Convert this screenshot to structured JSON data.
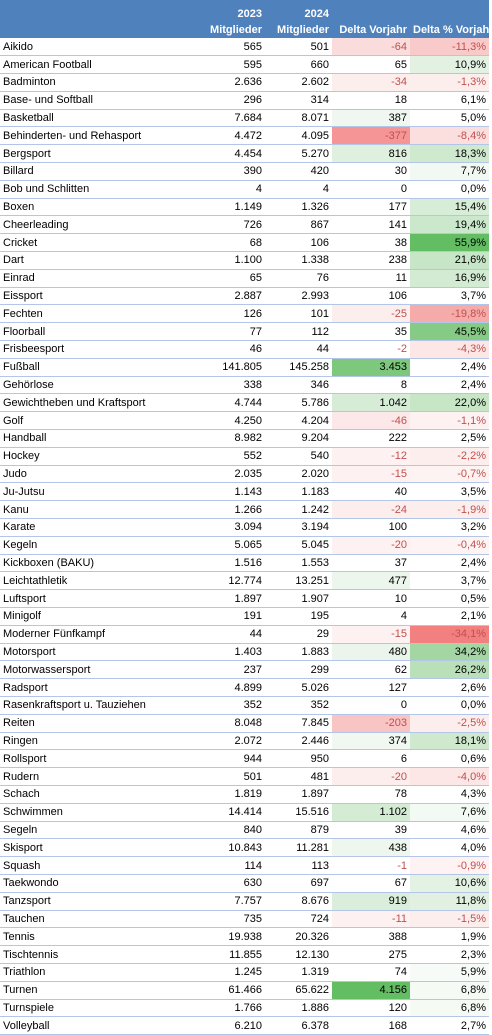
{
  "headers": {
    "name": "",
    "y2023_line1": "2023",
    "y2023_line2": "Mitglieder",
    "y2024_line1": "2024",
    "y2024_line2": "Mitglieder",
    "delta": "Delta Vorjahr",
    "delta_pct": "Delta % Vorjahr"
  },
  "colors": {
    "header_bg": "#4f81bd",
    "negative_text": "#c0504d",
    "positive_scale": [
      "#e4f1e4",
      "#cde9cd",
      "#a6d8a6",
      "#6cc06c"
    ],
    "negative_scale": [
      "#fce4e4",
      "#f9c8c8",
      "#f59595"
    ]
  },
  "rows": [
    {
      "name": "Aikido",
      "y2023": "565",
      "y2024": "501",
      "delta": "-64",
      "pct": "-11,3%",
      "dc": "#fadcdc",
      "pc": "#f9caca"
    },
    {
      "name": "American Football",
      "y2023": "595",
      "y2024": "660",
      "delta": "65",
      "pct": "10,9%",
      "dc": "",
      "pc": "#e3f1e3"
    },
    {
      "name": "Badminton",
      "y2023": "2.636",
      "y2024": "2.602",
      "delta": "-34",
      "pct": "-1,3%",
      "dc": "#fdeeee",
      "pc": "#fdeeee"
    },
    {
      "name": "Base- und Softball",
      "y2023": "296",
      "y2024": "314",
      "delta": "18",
      "pct": "6,1%",
      "dc": "",
      "pc": ""
    },
    {
      "name": "Basketball",
      "y2023": "7.684",
      "y2024": "8.071",
      "delta": "387",
      "pct": "5,0%",
      "dc": "#f0f7f0",
      "pc": ""
    },
    {
      "name": "Behinderten- und Rehasport",
      "y2023": "4.472",
      "y2024": "4.095",
      "delta": "-377",
      "pct": "-8,4%",
      "dc": "#f59595",
      "pc": "#fbdede"
    },
    {
      "name": "Bergsport",
      "y2023": "4.454",
      "y2024": "5.270",
      "delta": "816",
      "pct": "18,3%",
      "dc": "#dff0df",
      "pc": "#cfe9cf"
    },
    {
      "name": "Billard",
      "y2023": "390",
      "y2024": "420",
      "delta": "30",
      "pct": "7,7%",
      "dc": "",
      "pc": "#f2f8f2"
    },
    {
      "name": "Bob und Schlitten",
      "y2023": "4",
      "y2024": "4",
      "delta": "0",
      "pct": "0,0%",
      "dc": "",
      "pc": ""
    },
    {
      "name": "Boxen",
      "y2023": "1.149",
      "y2024": "1.326",
      "delta": "177",
      "pct": "15,4%",
      "dc": "",
      "pc": "#d7edd7"
    },
    {
      "name": "Cheerleading",
      "y2023": "726",
      "y2024": "867",
      "delta": "141",
      "pct": "19,4%",
      "dc": "",
      "pc": "#cce8cc"
    },
    {
      "name": "Cricket",
      "y2023": "68",
      "y2024": "106",
      "delta": "38",
      "pct": "55,9%",
      "dc": "",
      "pc": "#63be63"
    },
    {
      "name": "Dart",
      "y2023": "1.100",
      "y2024": "1.338",
      "delta": "238",
      "pct": "21,6%",
      "dc": "",
      "pc": "#c7e6c7"
    },
    {
      "name": "Einrad",
      "y2023": "65",
      "y2024": "76",
      "delta": "11",
      "pct": "16,9%",
      "dc": "",
      "pc": "#d3ebd3"
    },
    {
      "name": "Eissport",
      "y2023": "2.887",
      "y2024": "2.993",
      "delta": "106",
      "pct": "3,7%",
      "dc": "",
      "pc": ""
    },
    {
      "name": "Fechten",
      "y2023": "126",
      "y2024": "101",
      "delta": "-25",
      "pct": "-19,8%",
      "dc": "#fdeeee",
      "pc": "#f6abab"
    },
    {
      "name": "Floorball",
      "y2023": "77",
      "y2024": "112",
      "delta": "35",
      "pct": "45,5%",
      "dc": "",
      "pc": "#85cb85"
    },
    {
      "name": "Frisbeesport",
      "y2023": "46",
      "y2024": "44",
      "delta": "-2",
      "pct": "-4,3%",
      "dc": "",
      "pc": "#fce6e6"
    },
    {
      "name": "Fußball",
      "y2023": "141.805",
      "y2024": "145.258",
      "delta": "3.453",
      "pct": "2,4%",
      "dc": "#7ec87e",
      "pc": ""
    },
    {
      "name": "Gehörlose",
      "y2023": "338",
      "y2024": "346",
      "delta": "8",
      "pct": "2,4%",
      "dc": "",
      "pc": ""
    },
    {
      "name": "Gewichtheben und Kraftsport",
      "y2023": "4.744",
      "y2024": "5.786",
      "delta": "1.042",
      "pct": "22,0%",
      "dc": "#d6ecd6",
      "pc": "#c6e6c6"
    },
    {
      "name": "Golf",
      "y2023": "4.250",
      "y2024": "4.204",
      "delta": "-46",
      "pct": "-1,1%",
      "dc": "#fce8e8",
      "pc": "#fef1f1"
    },
    {
      "name": "Handball",
      "y2023": "8.982",
      "y2024": "9.204",
      "delta": "222",
      "pct": "2,5%",
      "dc": "",
      "pc": ""
    },
    {
      "name": "Hockey",
      "y2023": "552",
      "y2024": "540",
      "delta": "-12",
      "pct": "-2,2%",
      "dc": "#fef1f1",
      "pc": "#fdeeee"
    },
    {
      "name": "Judo",
      "y2023": "2.035",
      "y2024": "2.020",
      "delta": "-15",
      "pct": "-0,7%",
      "dc": "#fef1f1",
      "pc": "#fef3f3"
    },
    {
      "name": "Ju-Jutsu",
      "y2023": "1.143",
      "y2024": "1.183",
      "delta": "40",
      "pct": "3,5%",
      "dc": "",
      "pc": ""
    },
    {
      "name": "Kanu",
      "y2023": "1.266",
      "y2024": "1.242",
      "delta": "-24",
      "pct": "-1,9%",
      "dc": "#fdeeee",
      "pc": "#fdeeee"
    },
    {
      "name": "Karate",
      "y2023": "3.094",
      "y2024": "3.194",
      "delta": "100",
      "pct": "3,2%",
      "dc": "",
      "pc": ""
    },
    {
      "name": "Kegeln",
      "y2023": "5.065",
      "y2024": "5.045",
      "delta": "-20",
      "pct": "-0,4%",
      "dc": "#fef1f1",
      "pc": "#fef4f4"
    },
    {
      "name": "Kickboxen (BAKU)",
      "y2023": "1.516",
      "y2024": "1.553",
      "delta": "37",
      "pct": "2,4%",
      "dc": "",
      "pc": ""
    },
    {
      "name": "Leichtathletik",
      "y2023": "12.774",
      "y2024": "13.251",
      "delta": "477",
      "pct": "3,7%",
      "dc": "#ecf6ec",
      "pc": ""
    },
    {
      "name": "Luftsport",
      "y2023": "1.897",
      "y2024": "1.907",
      "delta": "10",
      "pct": "0,5%",
      "dc": "",
      "pc": ""
    },
    {
      "name": "Minigolf",
      "y2023": "191",
      "y2024": "195",
      "delta": "4",
      "pct": "2,1%",
      "dc": "",
      "pc": ""
    },
    {
      "name": "Moderner Fünfkampf",
      "y2023": "44",
      "y2024": "29",
      "delta": "-15",
      "pct": "-34,1%",
      "dc": "#fef1f1",
      "pc": "#f28080"
    },
    {
      "name": "Motorsport",
      "y2023": "1.403",
      "y2024": "1.883",
      "delta": "480",
      "pct": "34,2%",
      "dc": "#ebf5eb",
      "pc": "#a3d6a3"
    },
    {
      "name": "Motorwassersport",
      "y2023": "237",
      "y2024": "299",
      "delta": "62",
      "pct": "26,2%",
      "dc": "",
      "pc": "#b9e0b9"
    },
    {
      "name": "Radsport",
      "y2023": "4.899",
      "y2024": "5.026",
      "delta": "127",
      "pct": "2,6%",
      "dc": "",
      "pc": ""
    },
    {
      "name": "Rasenkraftsport u. Tauziehen",
      "y2023": "352",
      "y2024": "352",
      "delta": "0",
      "pct": "0,0%",
      "dc": "",
      "pc": ""
    },
    {
      "name": "Reiten",
      "y2023": "8.048",
      "y2024": "7.845",
      "delta": "-203",
      "pct": "-2,5%",
      "dc": "#f9c4c4",
      "pc": "#fdeeee"
    },
    {
      "name": "Ringen",
      "y2023": "2.072",
      "y2024": "2.446",
      "delta": "374",
      "pct": "18,1%",
      "dc": "#f1f8f1",
      "pc": "#cfe9cf"
    },
    {
      "name": "Rollsport",
      "y2023": "944",
      "y2024": "950",
      "delta": "6",
      "pct": "0,6%",
      "dc": "",
      "pc": ""
    },
    {
      "name": "Rudern",
      "y2023": "501",
      "y2024": "481",
      "delta": "-20",
      "pct": "-4,0%",
      "dc": "#fdeeee",
      "pc": "#fce6e6"
    },
    {
      "name": "Schach",
      "y2023": "1.819",
      "y2024": "1.897",
      "delta": "78",
      "pct": "4,3%",
      "dc": "",
      "pc": ""
    },
    {
      "name": "Schwimmen",
      "y2023": "14.414",
      "y2024": "15.516",
      "delta": "1.102",
      "pct": "7,6%",
      "dc": "#d4ebd4",
      "pc": "#f3f9f3"
    },
    {
      "name": "Segeln",
      "y2023": "840",
      "y2024": "879",
      "delta": "39",
      "pct": "4,6%",
      "dc": "",
      "pc": ""
    },
    {
      "name": "Skisport",
      "y2023": "10.843",
      "y2024": "11.281",
      "delta": "438",
      "pct": "4,0%",
      "dc": "#eef6ee",
      "pc": ""
    },
    {
      "name": "Squash",
      "y2023": "114",
      "y2024": "113",
      "delta": "-1",
      "pct": "-0,9%",
      "dc": "",
      "pc": "#fef2f2"
    },
    {
      "name": "Taekwondo",
      "y2023": "630",
      "y2024": "697",
      "delta": "67",
      "pct": "10,6%",
      "dc": "",
      "pc": "#e4f2e4"
    },
    {
      "name": "Tanzsport",
      "y2023": "7.757",
      "y2024": "8.676",
      "delta": "919",
      "pct": "11,8%",
      "dc": "#dbeedb",
      "pc": "#e1f0e1"
    },
    {
      "name": "Tauchen",
      "y2023": "735",
      "y2024": "724",
      "delta": "-11",
      "pct": "-1,5%",
      "dc": "#fef1f1",
      "pc": "#fdeeee"
    },
    {
      "name": "Tennis",
      "y2023": "19.938",
      "y2024": "20.326",
      "delta": "388",
      "pct": "1,9%",
      "dc": "",
      "pc": ""
    },
    {
      "name": "Tischtennis",
      "y2023": "11.855",
      "y2024": "12.130",
      "delta": "275",
      "pct": "2,3%",
      "dc": "",
      "pc": ""
    },
    {
      "name": "Triathlon",
      "y2023": "1.245",
      "y2024": "1.319",
      "delta": "74",
      "pct": "5,9%",
      "dc": "",
      "pc": "#f7fbf7"
    },
    {
      "name": "Turnen",
      "y2023": "61.466",
      "y2024": "65.622",
      "delta": "4.156",
      "pct": "6,8%",
      "dc": "#63be63",
      "pc": "#f5faf5"
    },
    {
      "name": "Turnspiele",
      "y2023": "1.766",
      "y2024": "1.886",
      "delta": "120",
      "pct": "6,8%",
      "dc": "",
      "pc": "#f5faf5"
    },
    {
      "name": "Volleyball",
      "y2023": "6.210",
      "y2024": "6.378",
      "delta": "168",
      "pct": "2,7%",
      "dc": "",
      "pc": ""
    }
  ]
}
